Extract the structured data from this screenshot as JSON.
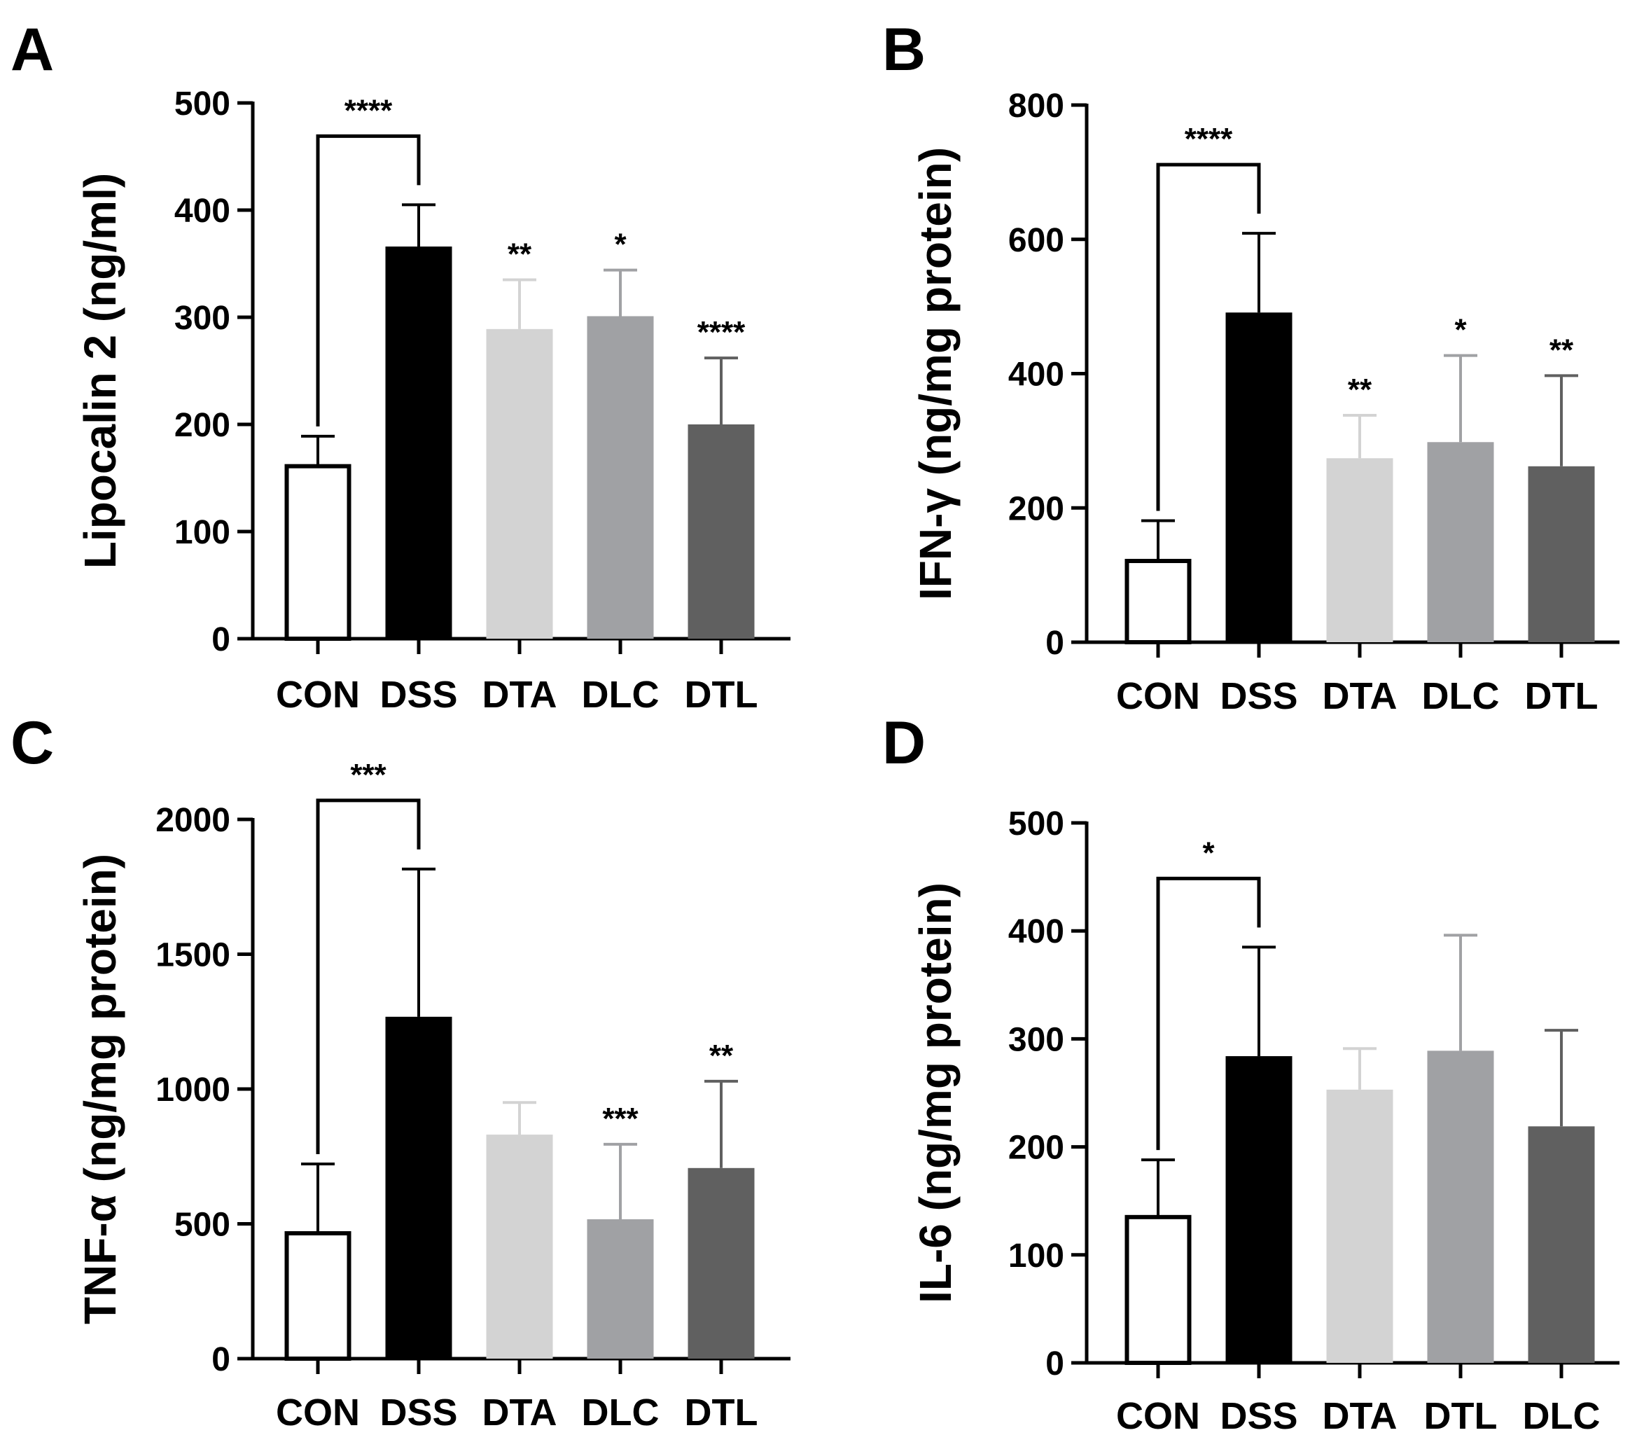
{
  "chart_data": [
    {
      "panel": "A",
      "type": "bar",
      "ylabel": "Lipocalin 2 (ng/ml)",
      "ylim": [
        0,
        500
      ],
      "yticks": [
        0,
        100,
        200,
        300,
        400,
        500
      ],
      "categories": [
        "CON",
        "DSS",
        "DTA",
        "DLC",
        "DTL"
      ],
      "values": [
        161,
        366,
        289,
        301,
        200
      ],
      "errors": [
        28,
        39,
        46,
        43,
        62
      ],
      "colors": [
        "#ffffff",
        "#000000",
        "#d3d3d3",
        "#a0a1a4",
        "#606060"
      ],
      "significance": [
        "",
        "",
        "**",
        "*",
        "****"
      ],
      "bracket": {
        "from": "CON",
        "to": "DSS",
        "label": "****"
      }
    },
    {
      "panel": "B",
      "type": "bar",
      "ylabel": "IFN-γ (ng/mg protein)",
      "ylim": [
        0,
        800
      ],
      "yticks": [
        0,
        200,
        400,
        600,
        800
      ],
      "categories": [
        "CON",
        "DSS",
        "DTA",
        "DLC",
        "DTL"
      ],
      "values": [
        121,
        491,
        274,
        298,
        262
      ],
      "errors": [
        60,
        118,
        64,
        129,
        135
      ],
      "colors": [
        "#ffffff",
        "#000000",
        "#d3d3d3",
        "#a0a1a4",
        "#606060"
      ],
      "significance": [
        "",
        "",
        "**",
        "*",
        "**"
      ],
      "bracket": {
        "from": "CON",
        "to": "DSS",
        "label": "****"
      }
    },
    {
      "panel": "C",
      "type": "bar",
      "ylabel": "TNF-α (ng/mg protein)",
      "ylim": [
        0,
        2000
      ],
      "yticks": [
        0,
        500,
        1000,
        1500,
        2000
      ],
      "categories": [
        "CON",
        "DSS",
        "DTA",
        "DLC",
        "DTL"
      ],
      "values": [
        465,
        1268,
        831,
        517,
        707
      ],
      "errors": [
        257,
        548,
        119,
        278,
        322
      ],
      "colors": [
        "#ffffff",
        "#000000",
        "#d3d3d3",
        "#a0a1a4",
        "#606060"
      ],
      "significance": [
        "",
        "",
        "",
        "***",
        "**"
      ],
      "bracket": {
        "from": "CON",
        "to": "DSS",
        "label": "***"
      }
    },
    {
      "panel": "D",
      "type": "bar",
      "ylabel": "IL-6 (ng/mg protein)",
      "ylim": [
        0,
        500
      ],
      "yticks": [
        0,
        100,
        200,
        300,
        400,
        500
      ],
      "categories": [
        "CON",
        "DSS",
        "DTA",
        "DTL",
        "DLC"
      ],
      "values": [
        135,
        284,
        253,
        289,
        219
      ],
      "errors": [
        53,
        101,
        38,
        107,
        89
      ],
      "colors": [
        "#ffffff",
        "#000000",
        "#d3d3d3",
        "#a0a1a4",
        "#606060"
      ],
      "significance": [
        "",
        "",
        "",
        "",
        ""
      ],
      "bracket": {
        "from": "CON",
        "to": "DSS",
        "label": "*"
      }
    }
  ]
}
